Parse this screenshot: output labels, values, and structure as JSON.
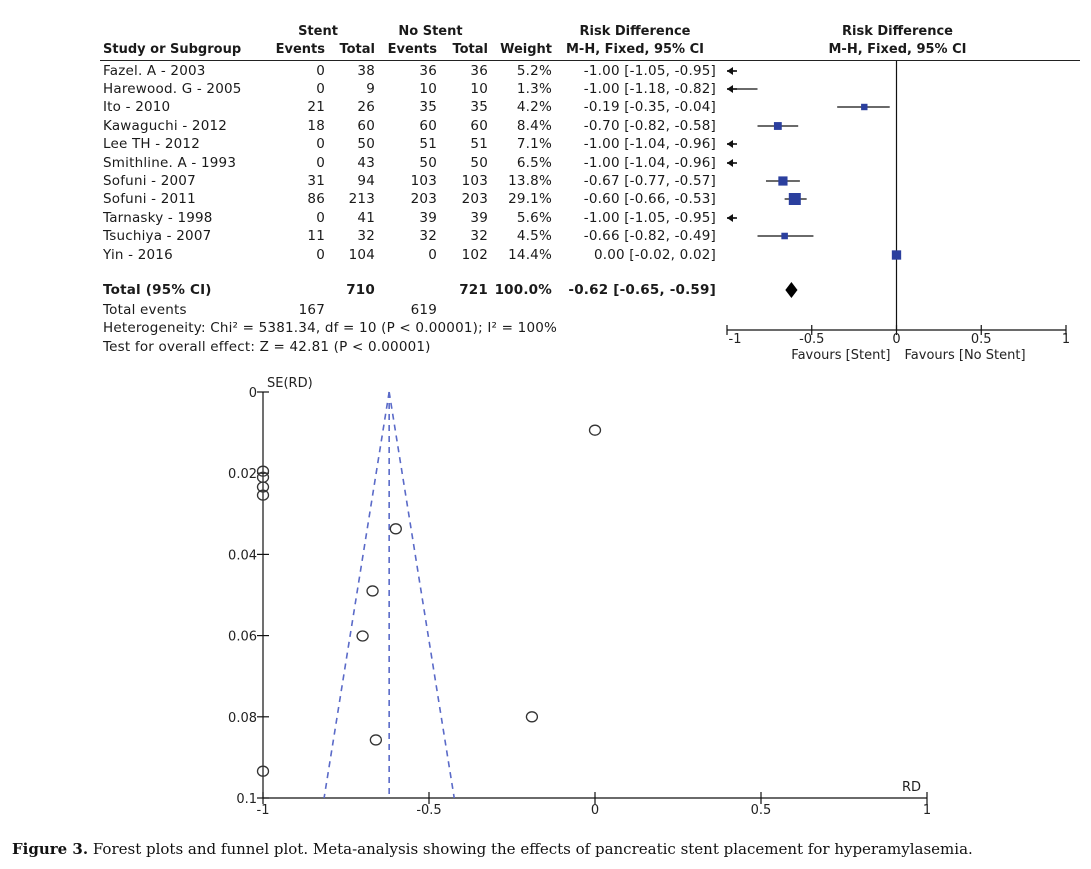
{
  "table": {
    "headers": {
      "group_stent": "Stent",
      "group_no_stent": "No Stent",
      "rd_top": "Risk Difference",
      "rd_sub": "M-H, Fixed, 95% CI",
      "plot_top": "Risk Difference",
      "plot_sub": "M-H, Fixed, 95% CI",
      "study": "Study or Subgroup",
      "events1": "Events",
      "total1": "Total",
      "events2": "Events",
      "total2": "Total",
      "weight": "Weight"
    },
    "rows": [
      {
        "study": "Fazel. A - 2003",
        "e1": "0",
        "t1": "38",
        "e2": "36",
        "t2": "36",
        "weight": "5.2%",
        "ci_text": "-1.00 [-1.05, -0.95]"
      },
      {
        "study": "Harewood. G - 2005",
        "e1": "0",
        "t1": "9",
        "e2": "10",
        "t2": "10",
        "weight": "1.3%",
        "ci_text": "-1.00 [-1.18, -0.82]"
      },
      {
        "study": "Ito - 2010",
        "e1": "21",
        "t1": "26",
        "e2": "35",
        "t2": "35",
        "weight": "4.2%",
        "ci_text": "-0.19 [-0.35, -0.04]"
      },
      {
        "study": "Kawaguchi - 2012",
        "e1": "18",
        "t1": "60",
        "e2": "60",
        "t2": "60",
        "weight": "8.4%",
        "ci_text": "-0.70 [-0.82, -0.58]"
      },
      {
        "study": "Lee TH - 2012",
        "e1": "0",
        "t1": "50",
        "e2": "51",
        "t2": "51",
        "weight": "7.1%",
        "ci_text": "-1.00 [-1.04, -0.96]"
      },
      {
        "study": "Smithline. A - 1993",
        "e1": "0",
        "t1": "43",
        "e2": "50",
        "t2": "50",
        "weight": "6.5%",
        "ci_text": "-1.00 [-1.04, -0.96]"
      },
      {
        "study": "Sofuni - 2007",
        "e1": "31",
        "t1": "94",
        "e2": "103",
        "t2": "103",
        "weight": "13.8%",
        "ci_text": "-0.67 [-0.77, -0.57]"
      },
      {
        "study": "Sofuni - 2011",
        "e1": "86",
        "t1": "213",
        "e2": "203",
        "t2": "203",
        "weight": "29.1%",
        "ci_text": "-0.60 [-0.66, -0.53]"
      },
      {
        "study": "Tarnasky - 1998",
        "e1": "0",
        "t1": "41",
        "e2": "39",
        "t2": "39",
        "weight": "5.6%",
        "ci_text": "-1.00 [-1.05, -0.95]"
      },
      {
        "study": "Tsuchiya - 2007",
        "e1": "11",
        "t1": "32",
        "e2": "32",
        "t2": "32",
        "weight": "4.5%",
        "ci_text": "-0.66 [-0.82, -0.49]"
      },
      {
        "study": "Yin - 2016",
        "e1": "0",
        "t1": "104",
        "e2": "0",
        "t2": "102",
        "weight": "14.4%",
        "ci_text": "0.00 [-0.02, 0.02]"
      }
    ],
    "total": {
      "label": "Total (95% CI)",
      "t1": "710",
      "t2": "721",
      "weight": "100.0%",
      "ci_text": "-0.62 [-0.65, -0.59]"
    },
    "total_events": {
      "label": "Total events",
      "e1": "167",
      "e2": "619"
    },
    "heterogeneity": "Heterogeneity: Chi² = 5381.34, df = 10 (P < 0.00001); I² = 100%",
    "overall_effect": "Test for overall effect: Z = 42.81 (P < 0.00001)"
  },
  "chart_data": [
    {
      "type": "forest",
      "title": "Risk Difference M-H, Fixed, 95% CI",
      "xlim": [
        -1,
        1
      ],
      "xticks": [
        "-1",
        "-0.5",
        "0",
        "0.5",
        "1"
      ],
      "xlabel_left": "Favours [Stent]",
      "xlabel_right": "Favours [No Stent]",
      "marker_color": "#2b3f9e",
      "studies": [
        {
          "name": "Fazel. A - 2003",
          "rd": -1.0,
          "lo": -1.05,
          "hi": -0.95,
          "weight": 5.2
        },
        {
          "name": "Harewood. G - 2005",
          "rd": -1.0,
          "lo": -1.18,
          "hi": -0.82,
          "weight": 1.3
        },
        {
          "name": "Ito - 2010",
          "rd": -0.19,
          "lo": -0.35,
          "hi": -0.04,
          "weight": 4.2
        },
        {
          "name": "Kawaguchi - 2012",
          "rd": -0.7,
          "lo": -0.82,
          "hi": -0.58,
          "weight": 8.4
        },
        {
          "name": "Lee TH - 2012",
          "rd": -1.0,
          "lo": -1.04,
          "hi": -0.96,
          "weight": 7.1
        },
        {
          "name": "Smithline. A - 1993",
          "rd": -1.0,
          "lo": -1.04,
          "hi": -0.96,
          "weight": 6.5
        },
        {
          "name": "Sofuni - 2007",
          "rd": -0.67,
          "lo": -0.77,
          "hi": -0.57,
          "weight": 13.8
        },
        {
          "name": "Sofuni - 2011",
          "rd": -0.6,
          "lo": -0.66,
          "hi": -0.53,
          "weight": 29.1
        },
        {
          "name": "Tarnasky - 1998",
          "rd": -1.0,
          "lo": -1.05,
          "hi": -0.95,
          "weight": 5.6
        },
        {
          "name": "Tsuchiya - 2007",
          "rd": -0.66,
          "lo": -0.82,
          "hi": -0.49,
          "weight": 4.5
        },
        {
          "name": "Yin - 2016",
          "rd": 0.0,
          "lo": -0.02,
          "hi": 0.02,
          "weight": 14.4
        }
      ],
      "pooled": {
        "rd": -0.62,
        "lo": -0.65,
        "hi": -0.59
      }
    },
    {
      "type": "scatter",
      "title": "Funnel plot",
      "xlabel": "RD",
      "ylabel": "SE(RD)",
      "xlim": [
        -1,
        1
      ],
      "ylim": [
        0,
        0.1
      ],
      "y_inverted": true,
      "xticks": [
        "-1",
        "-0.5",
        "0",
        "0.5",
        "1"
      ],
      "yticks": [
        "0",
        "0.02",
        "0.04",
        "0.06",
        "0.08",
        "0.1"
      ],
      "pooled_rd": -0.62,
      "line_color": "#5a6ac8",
      "points": [
        {
          "x": 0.0,
          "y": 0.0094
        },
        {
          "x": -1.0,
          "y": 0.0195
        },
        {
          "x": -1.0,
          "y": 0.021
        },
        {
          "x": -1.0,
          "y": 0.0234
        },
        {
          "x": -1.0,
          "y": 0.0254
        },
        {
          "x": -0.6,
          "y": 0.0337
        },
        {
          "x": -0.67,
          "y": 0.049
        },
        {
          "x": -0.7,
          "y": 0.0601
        },
        {
          "x": -0.19,
          "y": 0.08
        },
        {
          "x": -0.66,
          "y": 0.0857
        },
        {
          "x": -1.0,
          "y": 0.0934
        }
      ]
    }
  ],
  "caption": {
    "label": "Figure 3.",
    "text": " Forest plots and funnel plot. Meta-analysis showing the effects of pancreatic stent placement for hyperamylasemia."
  }
}
